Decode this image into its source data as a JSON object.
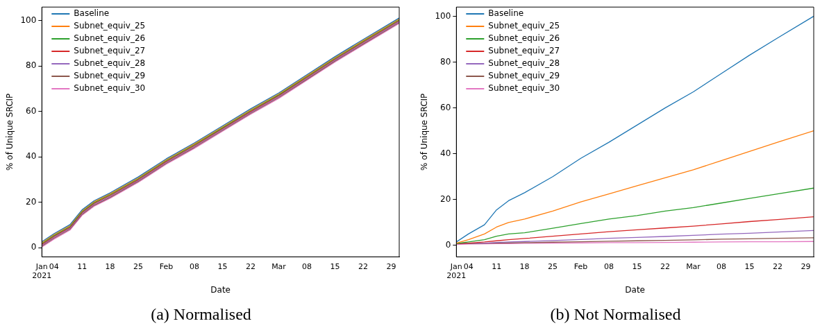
{
  "chart_data": [
    {
      "type": "line",
      "title": "(a) Normalised",
      "xlabel": "Date",
      "ylabel": "% of Unique SRCIP",
      "legend": "top left",
      "grid": false,
      "x": [
        "2021-01-01",
        "2021-01-04",
        "2021-01-08",
        "2021-01-11",
        "2021-01-14",
        "2021-01-18",
        "2021-01-25",
        "2021-02-01",
        "2021-02-08",
        "2021-02-15",
        "2021-02-22",
        "2021-03-01",
        "2021-03-08",
        "2021-03-15",
        "2021-03-22",
        "2021-03-31"
      ],
      "xlim": [
        "2021-01-01",
        "2021-03-31"
      ],
      "xticks": [
        {
          "value": "2021-01-01",
          "label": "Jan\n2021"
        },
        {
          "value": "2021-01-04",
          "label": "04"
        },
        {
          "value": "2021-01-11",
          "label": "11"
        },
        {
          "value": "2021-01-18",
          "label": "18"
        },
        {
          "value": "2021-01-25",
          "label": "25"
        },
        {
          "value": "2021-02-01",
          "label": "Feb"
        },
        {
          "value": "2021-02-08",
          "label": "08"
        },
        {
          "value": "2021-02-15",
          "label": "15"
        },
        {
          "value": "2021-02-22",
          "label": "22"
        },
        {
          "value": "2021-03-01",
          "label": "Mar"
        },
        {
          "value": "2021-03-08",
          "label": "08"
        },
        {
          "value": "2021-03-15",
          "label": "15"
        },
        {
          "value": "2021-03-22",
          "label": "22"
        },
        {
          "value": "2021-03-29",
          "label": "29"
        }
      ],
      "ylim": [
        -4,
        106
      ],
      "yticks": [
        0,
        20,
        40,
        60,
        80,
        100
      ],
      "series": [
        {
          "name": "Baseline",
          "color": "#1f77b4",
          "values": [
            2.7,
            6.2,
            10.2,
            16.7,
            20.7,
            24.2,
            31.2,
            39.2,
            46.2,
            53.7,
            61.2,
            68.2,
            76.2,
            84.2,
            91.7,
            101.2
          ]
        },
        {
          "name": "Subnet_equiv_25",
          "color": "#ff7f0e",
          "values": [
            2.3,
            5.8,
            9.8,
            16.3,
            20.3,
            23.8,
            30.8,
            38.8,
            45.8,
            53.3,
            60.8,
            67.8,
            75.8,
            83.8,
            91.3,
            100.8
          ]
        },
        {
          "name": "Subnet_equiv_26",
          "color": "#2ca02c",
          "values": [
            1.9,
            5.4,
            9.4,
            15.9,
            19.9,
            23.4,
            30.4,
            38.4,
            45.4,
            52.9,
            60.4,
            67.4,
            75.4,
            83.4,
            90.9,
            100.4
          ]
        },
        {
          "name": "Subnet_equiv_27",
          "color": "#d62728",
          "values": [
            1.5,
            5,
            9,
            15.5,
            19.5,
            23,
            30,
            38,
            45,
            52.5,
            60,
            67,
            75,
            83,
            90.5,
            100
          ]
        },
        {
          "name": "Subnet_equiv_28",
          "color": "#9467bd",
          "values": [
            1.1,
            4.6,
            8.6,
            15.1,
            19.1,
            22.6,
            29.6,
            37.6,
            44.6,
            52.1,
            59.6,
            66.6,
            74.6,
            82.6,
            90.1,
            99.6
          ]
        },
        {
          "name": "Subnet_equiv_29",
          "color": "#8c564b",
          "values": [
            0.7,
            4.2,
            8.2,
            14.7,
            18.7,
            22.2,
            29.2,
            37.2,
            44.2,
            51.7,
            59.2,
            66.2,
            74.2,
            82.2,
            89.7,
            99.2
          ]
        },
        {
          "name": "Subnet_equiv_30",
          "color": "#e377c2",
          "values": [
            0.3,
            3.8,
            7.8,
            14.3,
            18.3,
            21.8,
            28.8,
            36.8,
            43.8,
            51.3,
            58.8,
            65.8,
            73.8,
            81.8,
            89.3,
            98.8
          ]
        }
      ]
    },
    {
      "type": "line",
      "title": "(b) Not Normalised",
      "xlabel": "Date",
      "ylabel": "% of Unique SRCIP",
      "legend": "top left",
      "grid": false,
      "x": [
        "2021-01-01",
        "2021-01-04",
        "2021-01-08",
        "2021-01-11",
        "2021-01-14",
        "2021-01-18",
        "2021-01-25",
        "2021-02-01",
        "2021-02-08",
        "2021-02-15",
        "2021-02-22",
        "2021-03-01",
        "2021-03-08",
        "2021-03-15",
        "2021-03-22",
        "2021-03-31"
      ],
      "xlim": [
        "2021-01-01",
        "2021-03-31"
      ],
      "xticks": [
        {
          "value": "2021-01-01",
          "label": "Jan\n2021"
        },
        {
          "value": "2021-01-04",
          "label": "04"
        },
        {
          "value": "2021-01-11",
          "label": "11"
        },
        {
          "value": "2021-01-18",
          "label": "18"
        },
        {
          "value": "2021-01-25",
          "label": "25"
        },
        {
          "value": "2021-02-01",
          "label": "Feb"
        },
        {
          "value": "2021-02-08",
          "label": "08"
        },
        {
          "value": "2021-02-15",
          "label": "15"
        },
        {
          "value": "2021-02-22",
          "label": "22"
        },
        {
          "value": "2021-03-01",
          "label": "Mar"
        },
        {
          "value": "2021-03-08",
          "label": "08"
        },
        {
          "value": "2021-03-15",
          "label": "15"
        },
        {
          "value": "2021-03-22",
          "label": "22"
        },
        {
          "value": "2021-03-29",
          "label": "29"
        }
      ],
      "ylim": [
        -5,
        104
      ],
      "yticks": [
        0,
        20,
        40,
        60,
        80,
        100
      ],
      "series": [
        {
          "name": "Baseline",
          "color": "#1f77b4",
          "values": [
            1.5,
            5,
            9,
            15.5,
            19.5,
            23,
            30,
            38,
            45,
            52.5,
            60,
            67,
            75,
            83,
            90.5,
            100
          ]
        },
        {
          "name": "Subnet_equiv_25",
          "color": "#ff7f0e",
          "values": [
            1,
            2.5,
            5,
            8,
            10,
            11.5,
            15,
            19,
            22.5,
            26,
            29.5,
            33,
            37,
            41,
            45,
            50
          ]
        },
        {
          "name": "Subnet_equiv_26",
          "color": "#2ca02c",
          "values": [
            0.8,
            1.5,
            2.5,
            4,
            5,
            5.5,
            7.5,
            9.5,
            11.5,
            13,
            15,
            16.5,
            18.5,
            20.5,
            22.5,
            25
          ]
        },
        {
          "name": "Subnet_equiv_27",
          "color": "#d62728",
          "values": [
            0.8,
            1,
            1.5,
            2,
            2.5,
            3,
            4,
            5,
            6,
            6.8,
            7.6,
            8.4,
            9.4,
            10.4,
            11.3,
            12.5
          ]
        },
        {
          "name": "Subnet_equiv_28",
          "color": "#9467bd",
          "values": [
            0.8,
            0.9,
            1,
            1.3,
            1.5,
            1.7,
            2.1,
            2.6,
            3.1,
            3.5,
            3.9,
            4.4,
            4.9,
            5.3,
            5.8,
            6.5
          ]
        },
        {
          "name": "Subnet_equiv_29",
          "color": "#8c564b",
          "values": [
            0.8,
            0.8,
            0.9,
            1,
            1.1,
            1.2,
            1.4,
            1.6,
            1.8,
            2,
            2.2,
            2.4,
            2.7,
            2.9,
            3.1,
            3.3
          ]
        },
        {
          "name": "Subnet_equiv_30",
          "color": "#e377c2",
          "values": [
            0.4,
            0.6,
            0.7,
            0.8,
            0.8,
            0.9,
            1,
            1.1,
            1.2,
            1.2,
            1.3,
            1.4,
            1.5,
            1.6,
            1.6,
            1.7
          ]
        }
      ]
    }
  ]
}
